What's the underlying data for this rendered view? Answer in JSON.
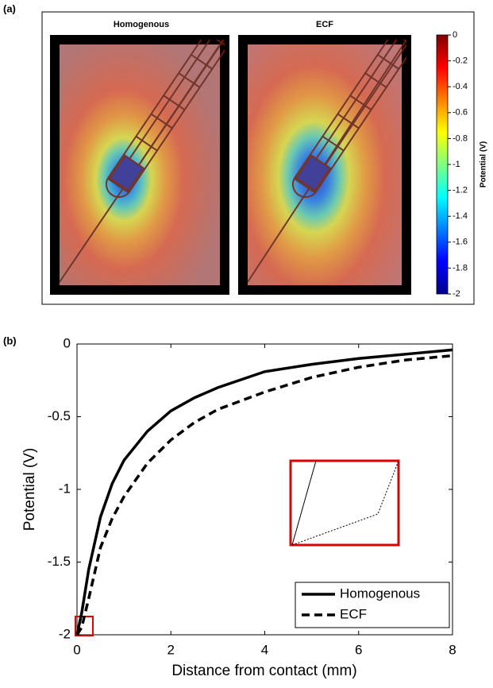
{
  "panel_a": {
    "label": "(a)",
    "titles": [
      "Homogenous",
      "ECF"
    ],
    "colorbar": {
      "label": "Potential (V)",
      "lim": [
        -2,
        0
      ],
      "ticks": [
        0,
        -0.2,
        -0.4,
        -0.6,
        -0.8,
        -1,
        -1.2,
        -1.4,
        -1.6,
        -1.8,
        -2
      ]
    }
  },
  "chart_data": {
    "type": "line",
    "panel_label": "(b)",
    "xlabel": "Distance from contact (mm)",
    "ylabel": "Potential (V)",
    "xlim": [
      0,
      8
    ],
    "ylim": [
      -2,
      0
    ],
    "xticks": [
      0,
      2,
      4,
      6,
      8
    ],
    "yticks": [
      -2,
      -1.5,
      -1,
      -0.5,
      0
    ],
    "x": [
      0,
      0.1,
      0.25,
      0.5,
      0.75,
      1,
      1.5,
      2,
      2.5,
      3,
      4,
      5,
      6,
      7,
      8
    ],
    "series": [
      {
        "name": "Homogenous",
        "color": "#000000",
        "dash": "solid",
        "values": [
          -2,
          -1.85,
          -1.55,
          -1.19,
          -0.96,
          -0.8,
          -0.6,
          -0.46,
          -0.37,
          -0.3,
          -0.19,
          -0.14,
          -0.1,
          -0.07,
          -0.04
        ]
      },
      {
        "name": "ECF",
        "color": "#000000",
        "dash": "dashed",
        "values": [
          -2,
          -1.95,
          -1.75,
          -1.4,
          -1.2,
          -1.05,
          -0.82,
          -0.66,
          -0.54,
          -0.45,
          -0.33,
          -0.23,
          -0.16,
          -0.11,
          -0.08
        ]
      }
    ],
    "legend": "lower right"
  }
}
